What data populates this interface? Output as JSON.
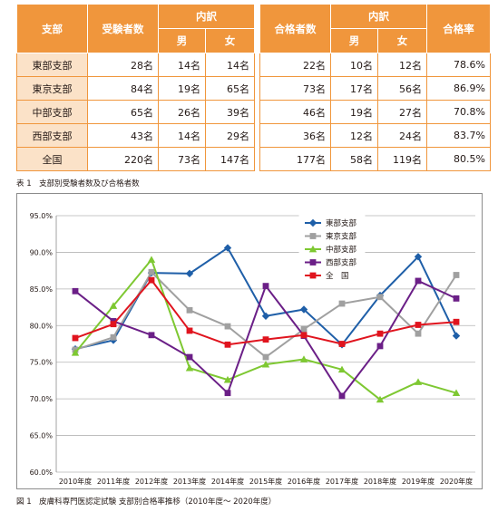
{
  "table": {
    "header": {
      "branch": "支部",
      "examinees": "受験者数",
      "breakdown": "内訳",
      "male": "男",
      "female": "女",
      "passers": "合格者数",
      "pass_rate": "合格率"
    },
    "rows": [
      {
        "branch": "東部支部",
        "examinees": "28名",
        "exam_male": "14名",
        "exam_female": "14名",
        "passers": "22名",
        "pass_male": "10名",
        "pass_female": "12名",
        "rate": "78.6%"
      },
      {
        "branch": "東京支部",
        "examinees": "84名",
        "exam_male": "19名",
        "exam_female": "65名",
        "passers": "73名",
        "pass_male": "17名",
        "pass_female": "56名",
        "rate": "86.9%"
      },
      {
        "branch": "中部支部",
        "examinees": "65名",
        "exam_male": "26名",
        "exam_female": "39名",
        "passers": "46名",
        "pass_male": "19名",
        "pass_female": "27名",
        "rate": "70.8%"
      },
      {
        "branch": "西部支部",
        "examinees": "43名",
        "exam_male": "14名",
        "exam_female": "29名",
        "passers": "36名",
        "pass_male": "12名",
        "pass_female": "24名",
        "rate": "83.7%"
      },
      {
        "branch": "全国",
        "examinees": "220名",
        "exam_male": "73名",
        "exam_female": "147名",
        "passers": "177名",
        "pass_male": "58名",
        "pass_female": "119名",
        "rate": "80.5%"
      }
    ],
    "caption": "表 1　支部別受験者数及び合格者数"
  },
  "chart_data": {
    "type": "line",
    "x": [
      "2010年度",
      "2011年度",
      "2012年度",
      "2013年度",
      "2014年度",
      "2015年度",
      "2016年度",
      "2017年度",
      "2018年度",
      "2019年度",
      "2020年度"
    ],
    "ylim": [
      60,
      95
    ],
    "yticks": [
      "60.0%",
      "65.0%",
      "70.0%",
      "75.0%",
      "80.0%",
      "85.0%",
      "90.0%",
      "95.0%"
    ],
    "grid": true,
    "legend": "top-center",
    "series": [
      {
        "name": "東部支部",
        "color": "#1f5fa8",
        "marker": "diamond",
        "values": [
          76.8,
          78.0,
          87.2,
          87.1,
          90.6,
          81.3,
          82.2,
          77.4,
          84.1,
          89.4,
          78.6
        ]
      },
      {
        "name": "東京支部",
        "color": "#a0a0a0",
        "marker": "square",
        "values": [
          76.7,
          78.4,
          87.3,
          82.1,
          79.9,
          75.7,
          79.5,
          83.0,
          83.9,
          78.9,
          86.9
        ]
      },
      {
        "name": "中部支部",
        "color": "#7ec832",
        "marker": "triangle",
        "values": [
          76.3,
          82.7,
          89.0,
          74.2,
          72.6,
          74.7,
          75.4,
          74.0,
          69.9,
          72.3,
          70.8
        ]
      },
      {
        "name": "西部支部",
        "color": "#6b1f87",
        "marker": "square",
        "values": [
          84.7,
          80.6,
          78.7,
          75.7,
          70.8,
          85.4,
          78.6,
          70.4,
          77.2,
          86.1,
          83.7
        ]
      },
      {
        "name": "全　国",
        "color": "#e0141e",
        "marker": "square",
        "values": [
          78.3,
          80.2,
          86.2,
          79.3,
          77.4,
          78.1,
          78.7,
          77.5,
          78.9,
          80.1,
          80.5
        ]
      }
    ],
    "caption": "図 1　皮膚科専門医認定試験 支部別合格率推移（2010年度〜 2020年度）"
  }
}
